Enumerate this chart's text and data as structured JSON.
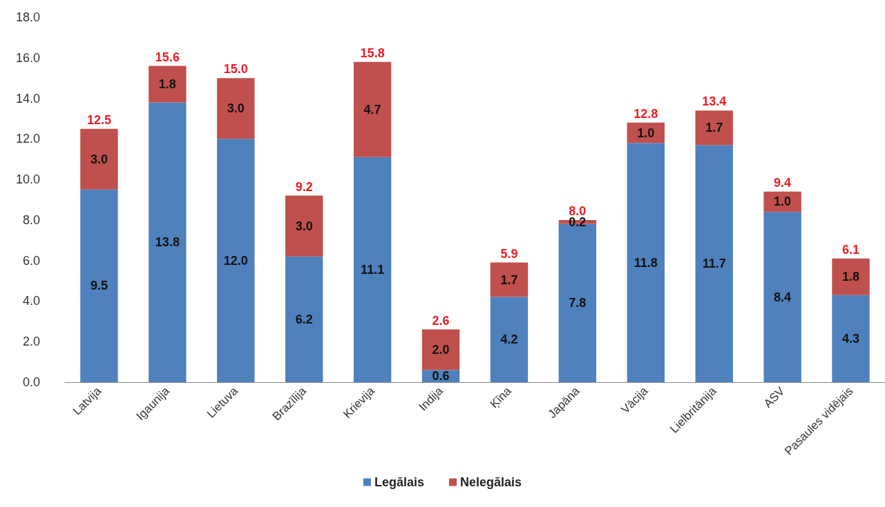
{
  "chart_data": {
    "type": "bar",
    "stacked": true,
    "categories": [
      "Latvija",
      "Igaunija",
      "Lietuva",
      "Brazīlija",
      "Krievija",
      "Indija",
      "Ķīna",
      "Japāna",
      "Vācija",
      "Lielbritānija",
      "ASV",
      "Pasaules vidējais"
    ],
    "series": [
      {
        "name": "Legālais",
        "color": "#4f81bd",
        "values": [
          9.5,
          13.8,
          12.0,
          6.2,
          11.1,
          0.6,
          4.2,
          7.8,
          11.8,
          11.7,
          8.4,
          4.3
        ],
        "value_labels": [
          "9.5",
          "13.8",
          "12.0",
          "6.2",
          "11.1",
          "0.6",
          "4.2",
          "7.8",
          "11.8",
          "11.7",
          "8.4",
          "4.3"
        ]
      },
      {
        "name": "Nelegālais",
        "color": "#c0504d",
        "values": [
          3.0,
          1.8,
          3.0,
          3.0,
          4.7,
          2.0,
          1.7,
          0.2,
          1.0,
          1.7,
          1.0,
          1.8
        ],
        "value_labels": [
          "3.0",
          "1.8",
          "3.0",
          "3.0",
          "4.7",
          "2.0",
          "1.7",
          "0.2",
          "1.0",
          "1.7",
          "1.0",
          "1.8"
        ]
      }
    ],
    "totals": [
      "12.5",
      "15.6",
      "15.0",
      "9.2",
      "15.8",
      "2.6",
      "5.9",
      "8.0",
      "12.8",
      "13.4",
      "9.4",
      "6.1"
    ],
    "ylim": [
      0,
      18
    ],
    "yticks": [
      {
        "value": 0,
        "label": "0.0"
      },
      {
        "value": 2,
        "label": "2.0"
      },
      {
        "value": 4,
        "label": "4.0"
      },
      {
        "value": 6,
        "label": "6.0"
      },
      {
        "value": 8,
        "label": "8.0"
      },
      {
        "value": 10,
        "label": "10.0"
      },
      {
        "value": 12,
        "label": "12.0"
      },
      {
        "value": 14,
        "label": "14.0"
      },
      {
        "value": 16,
        "label": "16.0"
      },
      {
        "value": 18,
        "label": "18.0"
      }
    ],
    "legend": "bottom"
  }
}
